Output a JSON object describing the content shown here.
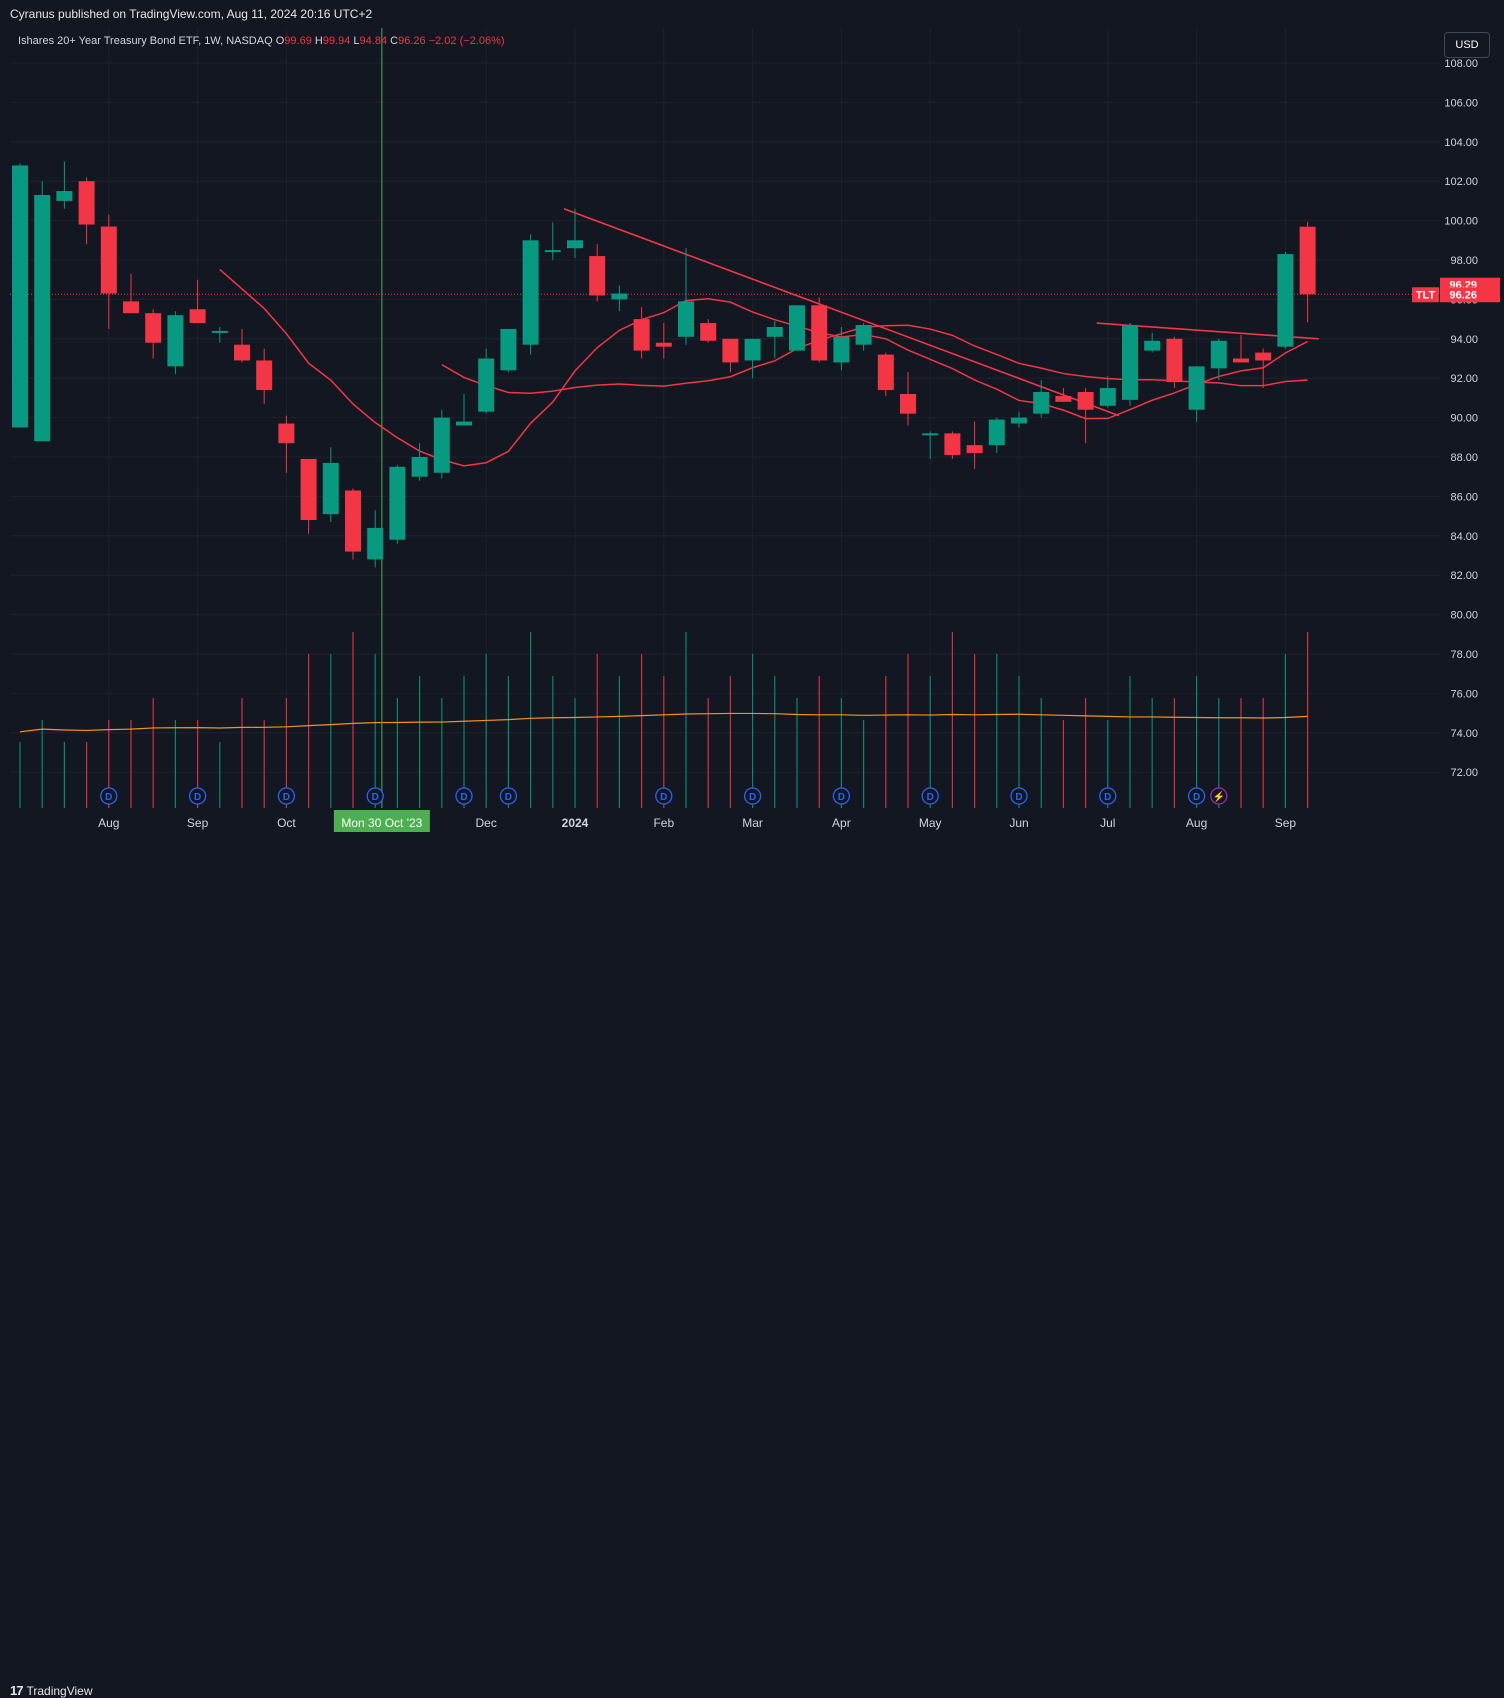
{
  "header": {
    "published_text": "Cyranus published on TradingView.com, Aug 11, 2024 20:16 UTC+2"
  },
  "legend": {
    "symbol_text": "Ishares 20+ Year Treasury Bond ETF, 1W, NASDAQ",
    "o_label": "O",
    "o_value": "99.69",
    "h_label": "H",
    "h_value": "99.94",
    "l_label": "L",
    "l_value": "94.84",
    "c_label": "C",
    "c_value": "96.26",
    "change_value": "−2.02 (−2.06%)"
  },
  "currency_button": "USD",
  "footer": {
    "logo_text": "TradingView",
    "logo_mark": "17"
  },
  "colors": {
    "background": "#131722",
    "up": "#089981",
    "down": "#f23645",
    "grid": "#1e222d",
    "volume_ma": "#f7931a",
    "crosshair": "#4caf50",
    "event_badge": "#2962ff"
  },
  "chart_data": {
    "type": "candlestick",
    "symbol": "TLT",
    "interval": "1W",
    "exchange": "NASDAQ",
    "y_axis": {
      "range": [
        70,
        110
      ],
      "ticks": [
        "108.00",
        "106.00",
        "104.00",
        "102.00",
        "100.00",
        "98.00",
        "96.00",
        "94.00",
        "92.00",
        "90.00",
        "88.00",
        "86.00",
        "84.00",
        "82.00",
        "80.00",
        "78.00",
        "76.00",
        "74.00",
        "72.00"
      ]
    },
    "x_axis": {
      "ticks": [
        {
          "label": "Aug",
          "index": 4
        },
        {
          "label": "Sep",
          "index": 8
        },
        {
          "label": "Oct",
          "index": 12
        },
        {
          "label": "Dec",
          "index": 21
        },
        {
          "label": "2024",
          "index": 25
        },
        {
          "label": "Feb",
          "index": 29
        },
        {
          "label": "Mar",
          "index": 33
        },
        {
          "label": "Apr",
          "index": 37
        },
        {
          "label": "May",
          "index": 41
        },
        {
          "label": "Jun",
          "index": 45
        },
        {
          "label": "Jul",
          "index": 49
        },
        {
          "label": "Aug",
          "index": 53
        },
        {
          "label": "Sep",
          "index": 57
        }
      ],
      "crosshair_label": "Mon 30 Oct '23",
      "crosshair_index": 16.3
    },
    "candles": [
      {
        "o": 89.5,
        "h": 102.9,
        "l": 89.5,
        "c": 102.8
      },
      {
        "o": 88.8,
        "h": 102.0,
        "l": 88.8,
        "c": 101.3
      },
      {
        "o": 101.0,
        "h": 103.0,
        "l": 100.6,
        "c": 101.5
      },
      {
        "o": 102.0,
        "h": 102.2,
        "l": 98.8,
        "c": 99.8
      },
      {
        "o": 99.7,
        "h": 100.3,
        "l": 94.5,
        "c": 96.3
      },
      {
        "o": 95.9,
        "h": 97.3,
        "l": 95.3,
        "c": 95.3
      },
      {
        "o": 95.3,
        "h": 95.5,
        "l": 93.0,
        "c": 93.8
      },
      {
        "o": 92.6,
        "h": 95.4,
        "l": 92.2,
        "c": 95.2
      },
      {
        "o": 95.5,
        "h": 97.0,
        "l": 94.8,
        "c": 94.8
      },
      {
        "o": 94.3,
        "h": 94.6,
        "l": 93.8,
        "c": 94.4
      },
      {
        "o": 93.7,
        "h": 94.5,
        "l": 92.8,
        "c": 92.9
      },
      {
        "o": 92.9,
        "h": 93.5,
        "l": 90.7,
        "c": 91.4
      },
      {
        "o": 89.7,
        "h": 90.1,
        "l": 87.2,
        "c": 88.7
      },
      {
        "o": 87.9,
        "h": 87.9,
        "l": 84.1,
        "c": 84.8
      },
      {
        "o": 85.1,
        "h": 88.5,
        "l": 84.7,
        "c": 87.7
      },
      {
        "o": 86.3,
        "h": 86.4,
        "l": 82.8,
        "c": 83.2
      },
      {
        "o": 82.8,
        "h": 85.3,
        "l": 82.4,
        "c": 84.4
      },
      {
        "o": 83.8,
        "h": 87.6,
        "l": 83.6,
        "c": 87.5
      },
      {
        "o": 87.0,
        "h": 88.7,
        "l": 86.8,
        "c": 88.0
      },
      {
        "o": 87.2,
        "h": 90.4,
        "l": 86.9,
        "c": 90.0
      },
      {
        "o": 89.6,
        "h": 91.2,
        "l": 89.6,
        "c": 89.8
      },
      {
        "o": 90.3,
        "h": 93.5,
        "l": 90.2,
        "c": 93.0
      },
      {
        "o": 92.4,
        "h": 94.5,
        "l": 92.3,
        "c": 94.5
      },
      {
        "o": 93.7,
        "h": 99.3,
        "l": 93.2,
        "c": 99.0
      },
      {
        "o": 98.4,
        "h": 99.9,
        "l": 98.0,
        "c": 98.5
      },
      {
        "o": 98.6,
        "h": 100.6,
        "l": 98.1,
        "c": 99.0
      },
      {
        "o": 98.2,
        "h": 98.8,
        "l": 95.9,
        "c": 96.2
      },
      {
        "o": 96.0,
        "h": 96.7,
        "l": 95.4,
        "c": 96.3
      },
      {
        "o": 95.0,
        "h": 95.6,
        "l": 93.0,
        "c": 93.4
      },
      {
        "o": 93.8,
        "h": 94.8,
        "l": 93.0,
        "c": 93.6
      },
      {
        "o": 94.1,
        "h": 98.6,
        "l": 93.7,
        "c": 95.9
      },
      {
        "o": 94.8,
        "h": 95.0,
        "l": 93.8,
        "c": 93.9
      },
      {
        "o": 94.0,
        "h": 94.0,
        "l": 92.3,
        "c": 92.8
      },
      {
        "o": 92.9,
        "h": 94.0,
        "l": 92.0,
        "c": 94.0
      },
      {
        "o": 94.1,
        "h": 94.9,
        "l": 93.0,
        "c": 94.6
      },
      {
        "o": 93.4,
        "h": 95.7,
        "l": 93.4,
        "c": 95.7
      },
      {
        "o": 95.7,
        "h": 96.1,
        "l": 92.8,
        "c": 92.9
      },
      {
        "o": 92.8,
        "h": 94.6,
        "l": 92.4,
        "c": 94.1
      },
      {
        "o": 93.7,
        "h": 94.8,
        "l": 93.4,
        "c": 94.7
      },
      {
        "o": 93.2,
        "h": 93.3,
        "l": 91.1,
        "c": 91.4
      },
      {
        "o": 91.2,
        "h": 92.3,
        "l": 89.6,
        "c": 90.2
      },
      {
        "o": 89.1,
        "h": 89.3,
        "l": 87.9,
        "c": 89.2
      },
      {
        "o": 89.2,
        "h": 89.3,
        "l": 87.9,
        "c": 88.1
      },
      {
        "o": 88.6,
        "h": 89.8,
        "l": 87.4,
        "c": 88.2
      },
      {
        "o": 88.6,
        "h": 90.0,
        "l": 88.2,
        "c": 89.9
      },
      {
        "o": 89.7,
        "h": 90.3,
        "l": 89.5,
        "c": 90.0
      },
      {
        "o": 90.2,
        "h": 91.9,
        "l": 90.0,
        "c": 91.3
      },
      {
        "o": 91.1,
        "h": 91.5,
        "l": 90.8,
        "c": 90.8
      },
      {
        "o": 91.3,
        "h": 91.5,
        "l": 88.7,
        "c": 90.4
      },
      {
        "o": 90.6,
        "h": 92.1,
        "l": 90.5,
        "c": 91.5
      },
      {
        "o": 90.9,
        "h": 94.8,
        "l": 90.6,
        "c": 94.7
      },
      {
        "o": 93.4,
        "h": 94.3,
        "l": 93.3,
        "c": 93.9
      },
      {
        "o": 94.0,
        "h": 94.1,
        "l": 91.5,
        "c": 91.8
      },
      {
        "o": 90.4,
        "h": 92.6,
        "l": 89.8,
        "c": 92.6
      },
      {
        "o": 92.5,
        "h": 94.0,
        "l": 91.9,
        "c": 93.9
      },
      {
        "o": 93.0,
        "h": 94.2,
        "l": 92.8,
        "c": 92.8
      },
      {
        "o": 93.3,
        "h": 93.5,
        "l": 91.5,
        "c": 92.9
      },
      {
        "o": 93.6,
        "h": 98.4,
        "l": 93.5,
        "c": 98.3
      },
      {
        "o": 99.69,
        "h": 99.94,
        "l": 94.84,
        "c": 96.26
      }
    ],
    "volumes": [
      3,
      4,
      3,
      3,
      4,
      4,
      5,
      4,
      4,
      3,
      5,
      4,
      5,
      7,
      7,
      8,
      7,
      5,
      6,
      5,
      6,
      7,
      6,
      8,
      6,
      5,
      7,
      6,
      7,
      6,
      8,
      5,
      6,
      7,
      6,
      5,
      6,
      5,
      4,
      6,
      7,
      6,
      8,
      7,
      7,
      6,
      5,
      4,
      5,
      4,
      6,
      5,
      5,
      6,
      5,
      5,
      5,
      7,
      8
    ],
    "last_price": 96.26,
    "price_labels": [
      {
        "text": "96.29",
        "value": 96.29
      },
      {
        "text": "96.26",
        "value": 96.26
      },
      {
        "text": "TLT"
      }
    ],
    "events": [
      {
        "label": "D",
        "index": 4
      },
      {
        "label": "D",
        "index": 8
      },
      {
        "label": "D",
        "index": 12
      },
      {
        "label": "D",
        "index": 16
      },
      {
        "label": "D",
        "index": 20
      },
      {
        "label": "D",
        "index": 22
      },
      {
        "label": "D",
        "index": 29
      },
      {
        "label": "D",
        "index": 33
      },
      {
        "label": "D",
        "index": 37
      },
      {
        "label": "D",
        "index": 41
      },
      {
        "label": "D",
        "index": 45
      },
      {
        "label": "D",
        "index": 49
      },
      {
        "label": "D",
        "index": 53
      },
      {
        "label": "⚡",
        "index": 54
      }
    ]
  }
}
